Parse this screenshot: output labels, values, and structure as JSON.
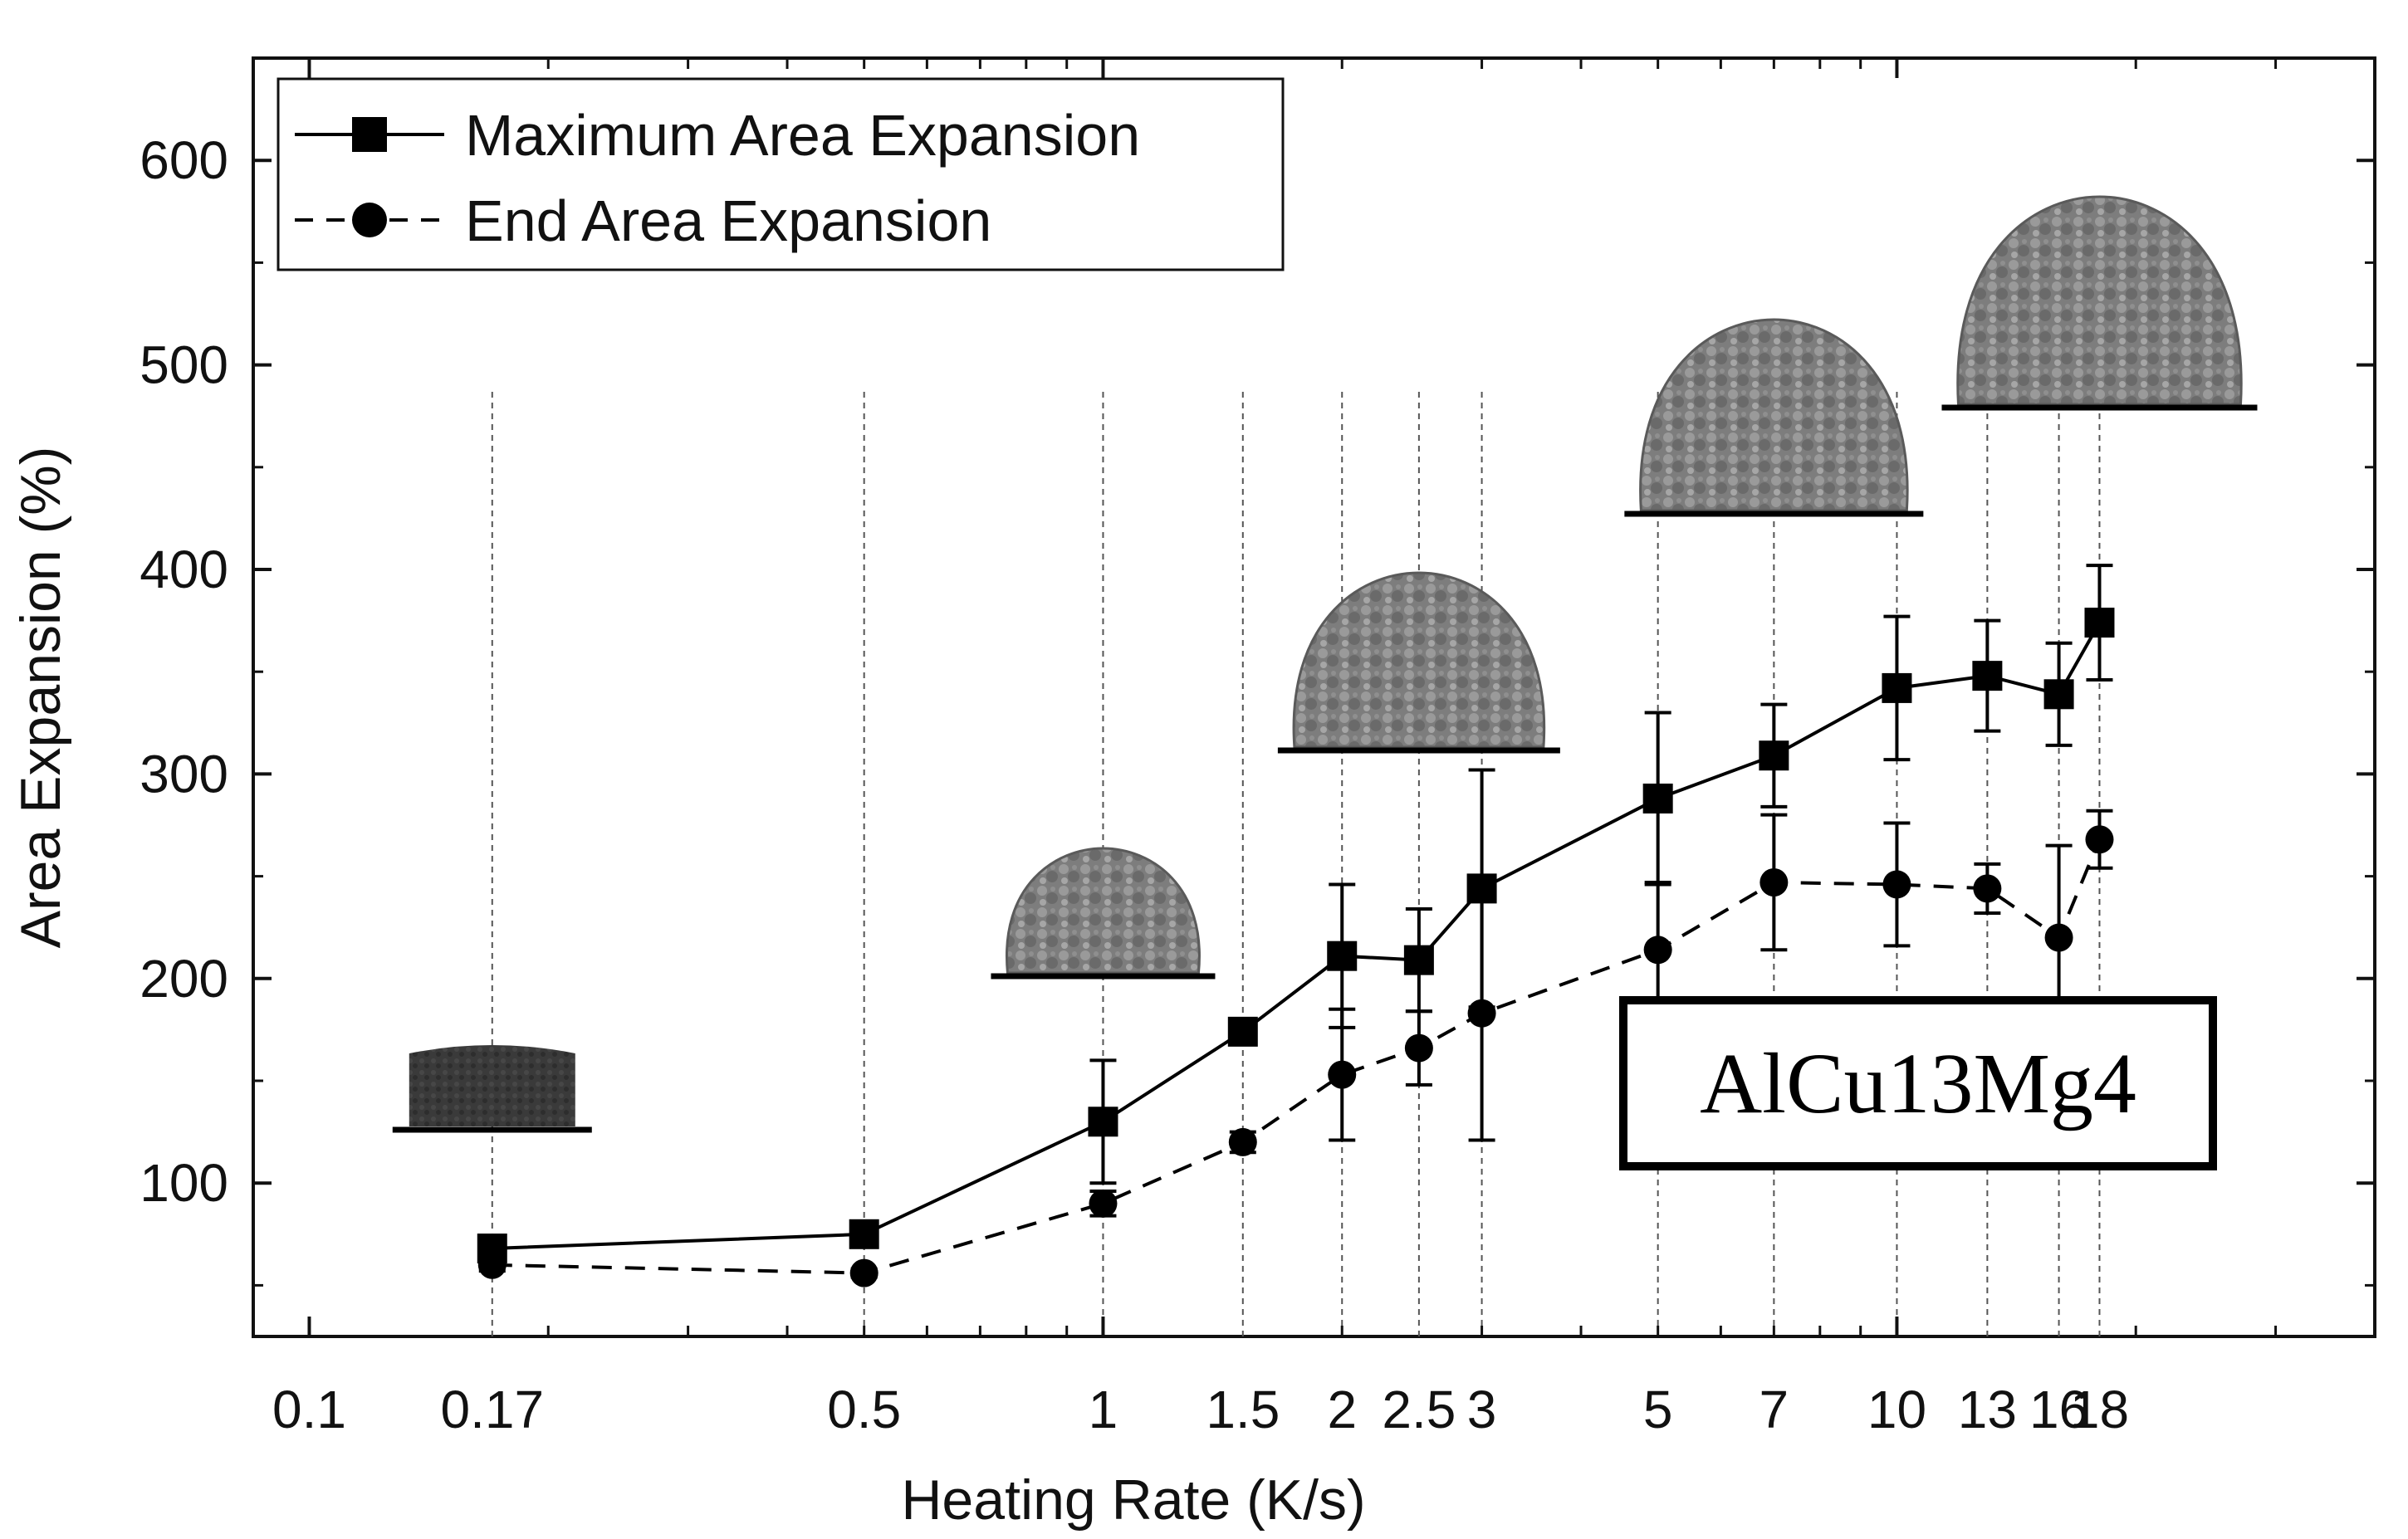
{
  "chart_data": {
    "type": "line",
    "x_scale": "log",
    "xlabel": "Heating Rate (K/s)",
    "ylabel": "Area Expansion (%)",
    "xlim": [
      0.085,
      40
    ],
    "ylim": [
      25,
      650
    ],
    "x_ticks": [
      {
        "value": 0.1,
        "label": "0.1"
      },
      {
        "value": 0.17,
        "label": "0.17"
      },
      {
        "value": 0.5,
        "label": "0.5"
      },
      {
        "value": 1,
        "label": "1"
      },
      {
        "value": 1.5,
        "label": "1.5"
      },
      {
        "value": 2,
        "label": "2"
      },
      {
        "value": 2.5,
        "label": "2.5"
      },
      {
        "value": 3,
        "label": "3"
      },
      {
        "value": 5,
        "label": "5"
      },
      {
        "value": 7,
        "label": "7"
      },
      {
        "value": 10,
        "label": "10"
      },
      {
        "value": 13,
        "label": "13"
      },
      {
        "value": 16,
        "label": "16"
      },
      {
        "value": 18,
        "label": "18"
      }
    ],
    "y_ticks": [
      100,
      200,
      300,
      400,
      500,
      600
    ],
    "annotation": "AlCu13Mg4",
    "legend_position": "top-left",
    "series": [
      {
        "name": "Maximum Area Expansion",
        "marker": "square",
        "line": "solid",
        "color": "#000000",
        "points": [
          {
            "x": 0.17,
            "y": 68,
            "err": 3
          },
          {
            "x": 0.5,
            "y": 75,
            "err": 2
          },
          {
            "x": 1,
            "y": 130,
            "err": 30
          },
          {
            "x": 1.5,
            "y": 174,
            "err": 6
          },
          {
            "x": 2,
            "y": 211,
            "err": 35
          },
          {
            "x": 2.5,
            "y": 209,
            "err": 25
          },
          {
            "x": 3,
            "y": 244,
            "err": 58
          },
          {
            "x": 5,
            "y": 288,
            "err": 42
          },
          {
            "x": 7,
            "y": 309,
            "err": 25
          },
          {
            "x": 10,
            "y": 342,
            "err": 35
          },
          {
            "x": 13,
            "y": 348,
            "err": 27
          },
          {
            "x": 16,
            "y": 339,
            "err": 25
          },
          {
            "x": 18,
            "y": 374,
            "err": 28
          }
        ]
      },
      {
        "name": "End Area Expansion",
        "marker": "circle",
        "line": "dashed",
        "color": "#000000",
        "points": [
          {
            "x": 0.17,
            "y": 60,
            "err": 3
          },
          {
            "x": 0.5,
            "y": 56,
            "err": 2
          },
          {
            "x": 1,
            "y": 90,
            "err": 6
          },
          {
            "x": 1.5,
            "y": 120,
            "err": 5
          },
          {
            "x": 2,
            "y": 153,
            "err": 32
          },
          {
            "x": 2.5,
            "y": 166,
            "err": 18
          },
          {
            "x": 3,
            "y": 183,
            "err": 62
          },
          {
            "x": 5,
            "y": 214,
            "err": 33
          },
          {
            "x": 7,
            "y": 247,
            "err": 33
          },
          {
            "x": 10,
            "y": 246,
            "err": 30
          },
          {
            "x": 13,
            "y": 244,
            "err": 12
          },
          {
            "x": 16,
            "y": 220,
            "err": 45
          },
          {
            "x": 18,
            "y": 268,
            "err": 14
          }
        ]
      }
    ],
    "sample_images": [
      {
        "x": 0.17,
        "shape": "flat"
      },
      {
        "x": 1,
        "shape": "small-dome"
      },
      {
        "x": 2.5,
        "shape": "medium-dome"
      },
      {
        "x": 7,
        "shape": "large-dome"
      },
      {
        "x": 18,
        "shape": "largest-dome"
      }
    ]
  }
}
